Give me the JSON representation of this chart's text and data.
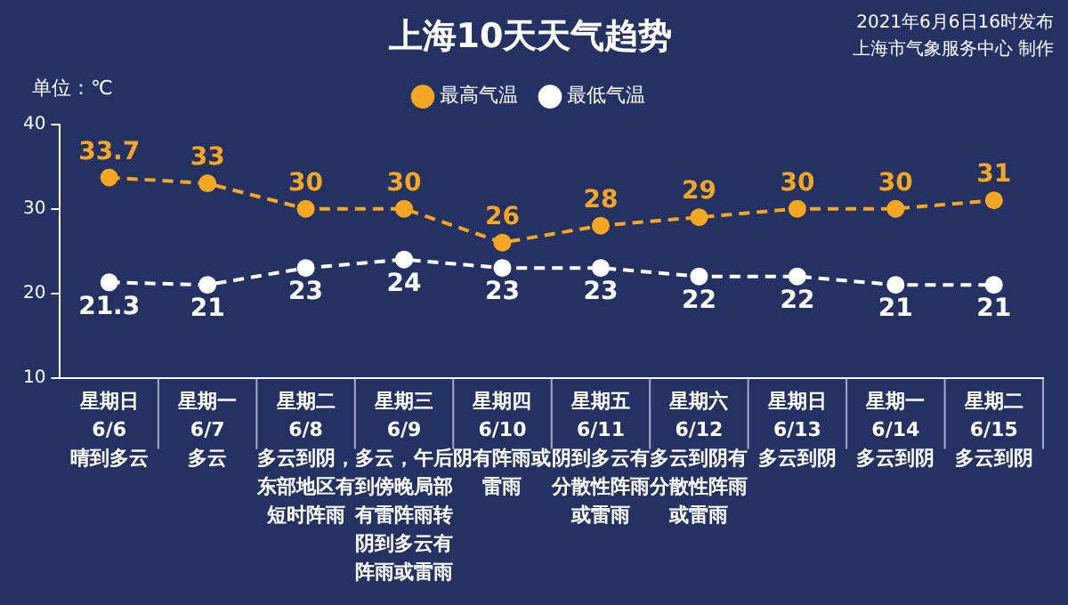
{
  "chart_data": {
    "type": "line",
    "title": "上海10天天气趋势",
    "ylabel": "单位：℃",
    "annotations": [
      "2021年6月6日16时发布",
      "上海市气象服务中心 制作"
    ],
    "categories": [
      "星期日\n6/6\n晴到多云",
      "星期一\n6/7\n多云",
      "星期二\n6/8\n多云到阴，东部地区有短时阵雨",
      "星期三\n6/9\n多云，午后到傍晚局部有雷阵雨转阴到多云有阵雨或雷雨",
      "星期四\n6/10\n阴有阵雨或雷雨",
      "星期五\n6/11\n阴到多云有分散性阵雨或雷雨",
      "星期六\n6/12\n多云到阴有分散性阵雨或雷雨",
      "星期日\n6/13\n多云到阴",
      "星期一\n6/14\n多云到阴",
      "星期二\n6/15\n多云到阴"
    ],
    "series": [
      {
        "name": "最高气温",
        "color": "#f5a623",
        "values": [
          33.7,
          33,
          30,
          30,
          26,
          28,
          29,
          30,
          30,
          31
        ]
      },
      {
        "name": "最低气温",
        "color": "#ffffff",
        "values": [
          21.3,
          21,
          23,
          24,
          23,
          23,
          22,
          22,
          21,
          21
        ]
      }
    ],
    "ylim": [
      10,
      40
    ],
    "yticks": [
      10,
      20,
      30,
      40
    ],
    "grid": false,
    "legend": "top",
    "marker": "circle",
    "line_style": "dashed",
    "data_labels": true
  }
}
